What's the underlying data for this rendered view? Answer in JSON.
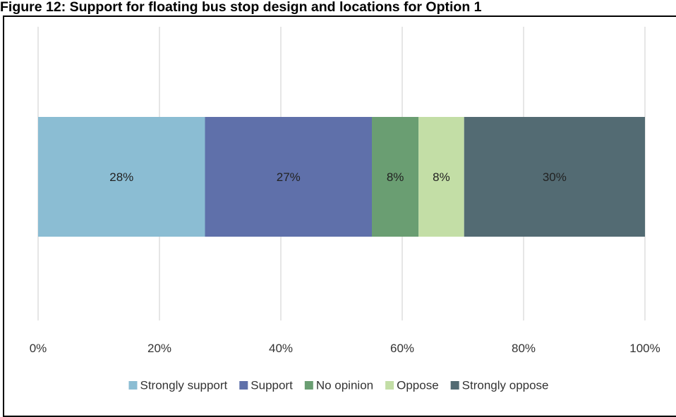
{
  "title": "Figure 12: Support for floating bus stop design and locations for Option 1",
  "chart_data": {
    "type": "bar",
    "orientation": "horizontal",
    "stacked": "100%",
    "categories": [
      ""
    ],
    "series": [
      {
        "name": "Strongly support",
        "values": [
          27.5
        ],
        "label": "28%",
        "color": "#8bbdd3"
      },
      {
        "name": "Support",
        "values": [
          27.5
        ],
        "label": "27%",
        "color": "#5f70aa"
      },
      {
        "name": "No opinion",
        "values": [
          7.7
        ],
        "label": "8%",
        "color": "#6a9e72"
      },
      {
        "name": "Oppose",
        "values": [
          7.5
        ],
        "label": "8%",
        "color": "#c3dea6"
      },
      {
        "name": "Strongly oppose",
        "values": [
          29.8
        ],
        "label": "30%",
        "color": "#536b73"
      }
    ],
    "xticks": [
      "0%",
      "20%",
      "40%",
      "60%",
      "80%",
      "100%"
    ],
    "xlim": [
      0,
      100
    ],
    "grid": true,
    "legend": "bottom"
  }
}
